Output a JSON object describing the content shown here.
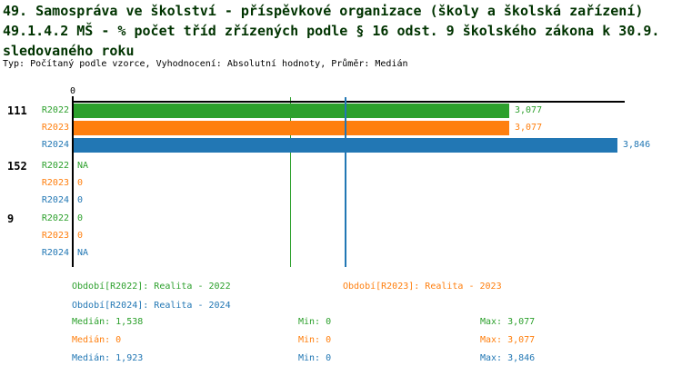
{
  "header": {
    "title_line1": "49. Samospráva ve školství - příspěvkové organizace (školy a školská zařízení)",
    "title_line2": "49.1.4.2 MŠ - % počet tříd zřízených podle § 16 odst. 9 školského zákona k 30.9.",
    "title_line3": "sledovaného roku",
    "meta": "Typ: Počítaný podle vzorce, Vyhodnocení: Absolutní hodnoty, Průměr: Medián"
  },
  "colors": {
    "title": "#003300",
    "axis": "#000000",
    "R2022": "#2ca02c",
    "R2023": "#ff7f0e",
    "R2024": "#2277b4"
  },
  "chart_data": {
    "type": "bar",
    "orientation": "horizontal",
    "x_axis": {
      "tick_labels": [
        "0"
      ],
      "min": 0,
      "max": 3900,
      "grid": false
    },
    "series_names": [
      "R2022",
      "R2023",
      "R2024"
    ],
    "groups": [
      {
        "label": "111",
        "bars": [
          {
            "series": "R2022",
            "value": 3077,
            "value_label": "3,077"
          },
          {
            "series": "R2023",
            "value": 3077,
            "value_label": "3,077"
          },
          {
            "series": "R2024",
            "value": 3846,
            "value_label": "3,846"
          }
        ]
      },
      {
        "label": "152",
        "bars": [
          {
            "series": "R2022",
            "value": null,
            "value_label": "NA"
          },
          {
            "series": "R2023",
            "value": 0,
            "value_label": "0"
          },
          {
            "series": "R2024",
            "value": 0,
            "value_label": "0"
          }
        ]
      },
      {
        "label": "9",
        "bars": [
          {
            "series": "R2022",
            "value": 0,
            "value_label": "0"
          },
          {
            "series": "R2023",
            "value": 0,
            "value_label": "0"
          },
          {
            "series": "R2024",
            "value": null,
            "value_label": "NA"
          }
        ]
      }
    ],
    "median_lines": [
      {
        "series": "R2022",
        "value": 1538
      },
      {
        "series": "R2024",
        "value": 1923
      }
    ]
  },
  "legend": {
    "entries": [
      {
        "series": "R2022",
        "label": "Období[R2022]: Realita - 2022"
      },
      {
        "series": "R2023",
        "label": "Období[R2023]: Realita - 2023"
      },
      {
        "series": "R2024",
        "label": "Období[R2024]: Realita - 2024"
      }
    ]
  },
  "stats": {
    "rows": [
      {
        "series": "R2022",
        "median": "Medián: 1,538",
        "min": "Min: 0",
        "max": "Max: 3,077"
      },
      {
        "series": "R2023",
        "median": "Medián: 0",
        "min": "Min: 0",
        "max": "Max: 3,077"
      },
      {
        "series": "R2024",
        "median": "Medián: 1,923",
        "min": "Min: 0",
        "max": "Max: 3,846"
      }
    ]
  }
}
